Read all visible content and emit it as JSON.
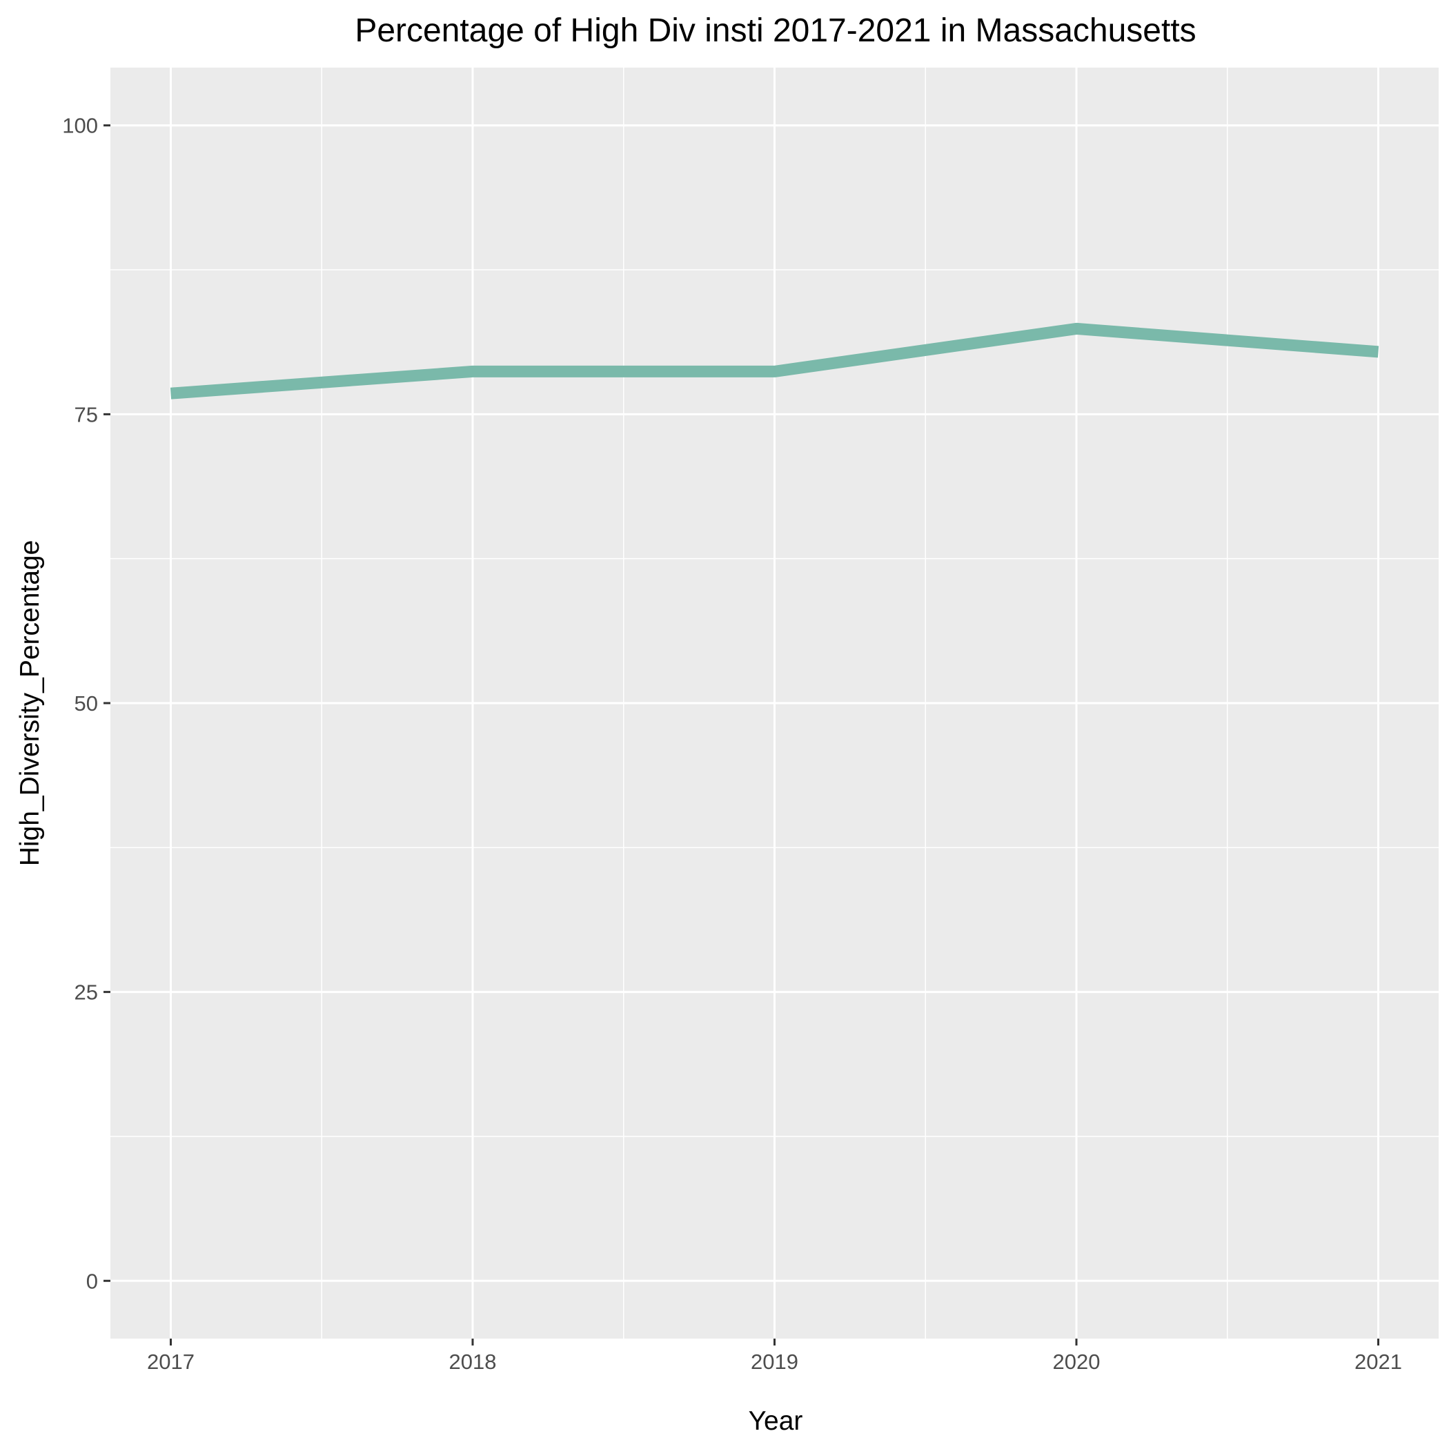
{
  "chart_data": {
    "type": "line",
    "title": "Percentage of High Div insti 2017-2021 in Massachusetts",
    "xlabel": "Year",
    "ylabel": "High_Diversity_Percentage",
    "x": [
      2017,
      2018,
      2019,
      2020,
      2021
    ],
    "x_tick_labels": [
      "2017",
      "2018",
      "2019",
      "2020",
      "2021"
    ],
    "y_ticks": [
      0,
      25,
      50,
      75,
      100
    ],
    "y_tick_labels": [
      "0",
      "25",
      "50",
      "75",
      "100"
    ],
    "xlim": [
      2016.8,
      2021.2
    ],
    "ylim": [
      -5,
      105
    ],
    "grid": true,
    "legend": "none",
    "series": [
      {
        "values": [
          76.8,
          78.7,
          78.7,
          82.4,
          80.4
        ],
        "color": "#7ab9aa"
      }
    ],
    "colors": {
      "panel_background": "#ebebeb",
      "grid_line": "#ffffff",
      "tick_mark": "#333333"
    }
  }
}
